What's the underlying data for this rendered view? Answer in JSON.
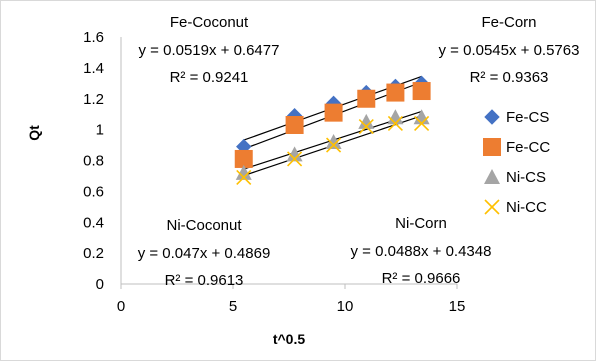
{
  "chart_data": {
    "type": "scatter",
    "xlabel": "t^0.5",
    "ylabel": "Qt",
    "xlim": [
      0,
      15
    ],
    "ylim": [
      0,
      1.6
    ],
    "x_ticks": [
      "0",
      "5",
      "10",
      "15"
    ],
    "y_ticks": [
      "0",
      "0.2",
      "0.4",
      "0.6",
      "0.8",
      "1",
      "1.2",
      "1.4",
      "1.6"
    ],
    "grid": false,
    "legend_position": "right",
    "series": [
      {
        "name": "Fe-CS",
        "marker": "diamond",
        "color": "#4472C4",
        "x": [
          5.48,
          7.75,
          9.49,
          10.95,
          12.25,
          13.42
        ],
        "y": [
          0.89,
          1.09,
          1.17,
          1.24,
          1.28,
          1.3
        ]
      },
      {
        "name": "Fe-CC",
        "marker": "square",
        "color": "#ED7D31",
        "x": [
          5.48,
          7.75,
          9.49,
          10.95,
          12.25,
          13.42
        ],
        "y": [
          0.81,
          1.03,
          1.11,
          1.2,
          1.24,
          1.25
        ]
      },
      {
        "name": "Ni-CS",
        "marker": "triangle",
        "color": "#A5A5A5",
        "x": [
          5.48,
          7.75,
          9.49,
          10.95,
          12.25,
          13.42
        ],
        "y": [
          0.72,
          0.84,
          0.92,
          1.05,
          1.08,
          1.08
        ]
      },
      {
        "name": "Ni-CC",
        "marker": "x",
        "color": "#FFC000",
        "x": [
          5.48,
          7.75,
          9.49,
          10.95,
          12.25,
          13.42
        ],
        "y": [
          0.69,
          0.81,
          0.9,
          1.02,
          1.04,
          1.04
        ]
      }
    ],
    "trendlines": [
      {
        "slope": 0.0519,
        "intercept": 0.6477,
        "x_range": [
          5.48,
          13.42
        ]
      },
      {
        "slope": 0.0545,
        "intercept": 0.5763,
        "x_range": [
          5.48,
          13.42
        ]
      },
      {
        "slope": 0.047,
        "intercept": 0.4869,
        "x_range": [
          5.48,
          13.42
        ]
      },
      {
        "slope": 0.0488,
        "intercept": 0.4348,
        "x_range": [
          5.48,
          13.42
        ]
      }
    ],
    "annotations": [
      {
        "title": "Fe-Coconut",
        "equation": "y = 0.0519x + 0.6477",
        "r2": "R² = 0.9241"
      },
      {
        "title": "Fe-Corn",
        "equation": "y = 0.0545x + 0.5763",
        "r2": "R² = 0.9363"
      },
      {
        "title": "Ni-Coconut",
        "equation": "y = 0.047x + 0.4869",
        "r2": "R² = 0.9613"
      },
      {
        "title": "Ni-Corn",
        "equation": "y = 0.0488x + 0.4348",
        "r2": "R² = 0.9666"
      }
    ]
  }
}
